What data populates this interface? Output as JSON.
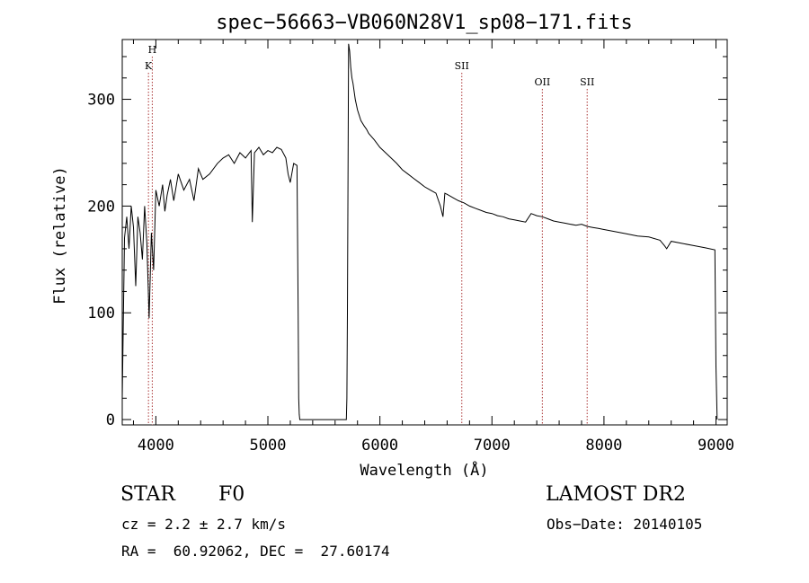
{
  "chart_data": {
    "type": "line",
    "title": "spec−56663−VB060N28V1_sp08−171.fits",
    "xlabel": "Wavelength (Å)",
    "ylabel": "Flux (relative)",
    "xlim": [
      3700,
      9100
    ],
    "ylim": [
      -5,
      356
    ],
    "x_ticks": [
      4000,
      5000,
      6000,
      7000,
      8000,
      9000
    ],
    "y_ticks": [
      0,
      100,
      200,
      300
    ],
    "grid": false,
    "line_color": "#000000",
    "series": [
      {
        "x": [
          3700,
          3720,
          3740,
          3760,
          3780,
          3800,
          3820,
          3840,
          3860,
          3880,
          3900,
          3920,
          3940,
          3960,
          3980,
          4000,
          4030,
          4060,
          4080,
          4100,
          4130,
          4160,
          4200,
          4250,
          4300,
          4340,
          4380,
          4420,
          4480,
          4550,
          4600,
          4650,
          4700,
          4750,
          4800,
          4850,
          4861,
          4880,
          4920,
          4960,
          5000,
          5040,
          5080,
          5120,
          5160,
          5180,
          5200,
          5230,
          5260,
          5270,
          5275,
          5280,
          5285,
          5290,
          5300,
          5400,
          5500,
          5600,
          5690,
          5700,
          5705,
          5710,
          5720,
          5730,
          5740,
          5750,
          5760,
          5780,
          5800,
          5830,
          5860,
          5880,
          5900,
          5950,
          6000,
          6050,
          6100,
          6150,
          6200,
          6250,
          6300,
          6350,
          6400,
          6450,
          6500,
          6540,
          6563,
          6580,
          6600,
          6650,
          6700,
          6750,
          6800,
          6850,
          6900,
          6950,
          7000,
          7050,
          7100,
          7150,
          7200,
          7250,
          7300,
          7350,
          7400,
          7450,
          7500,
          7550,
          7600,
          7650,
          7700,
          7750,
          7800,
          7850,
          7900,
          7950,
          8000,
          8100,
          8200,
          8300,
          8400,
          8500,
          8540,
          8560,
          8600,
          8700,
          8800,
          8900,
          8990,
          9000,
          9010
        ],
        "values": [
          20,
          170,
          190,
          160,
          200,
          180,
          125,
          190,
          175,
          150,
          200,
          165,
          95,
          175,
          140,
          215,
          200,
          220,
          195,
          210,
          225,
          205,
          230,
          215,
          225,
          205,
          235,
          225,
          230,
          240,
          245,
          248,
          240,
          250,
          245,
          252,
          185,
          250,
          255,
          248,
          252,
          250,
          255,
          253,
          245,
          230,
          222,
          240,
          238,
          100,
          20,
          5,
          0,
          0,
          0,
          0,
          0,
          0,
          0,
          0,
          20,
          100,
          352,
          345,
          330,
          320,
          315,
          300,
          290,
          280,
          275,
          272,
          268,
          262,
          255,
          250,
          245,
          240,
          234,
          230,
          226,
          222,
          218,
          215,
          212,
          200,
          190,
          212,
          211,
          208,
          205,
          203,
          200,
          198,
          196,
          194,
          193,
          191,
          190,
          188,
          187,
          186,
          185,
          193,
          191,
          190,
          188,
          186,
          185,
          184,
          183,
          182,
          183,
          181,
          180,
          179,
          178,
          176,
          174,
          172,
          171,
          168,
          163,
          160,
          167,
          165,
          163,
          161,
          159,
          50,
          0
        ]
      }
    ],
    "annotations": [
      {
        "label": "H",
        "x": 3968,
        "row": "top"
      },
      {
        "label": "K",
        "x": 3934,
        "row": "second"
      },
      {
        "label": "SII",
        "x": 6731,
        "row": "second"
      },
      {
        "label": "OII",
        "x": 7450,
        "row": "third"
      },
      {
        "label": "SII",
        "x": 7850,
        "row": "third"
      }
    ]
  },
  "info": {
    "class_label": "STAR",
    "subclass_label": "F0",
    "survey": "LAMOST DR2",
    "cz": "cz = 2.2 ± 2.7 km/s",
    "obs_date": "Obs−Date: 20140105",
    "coords": "RA =  60.92062, DEC =  27.60174"
  }
}
